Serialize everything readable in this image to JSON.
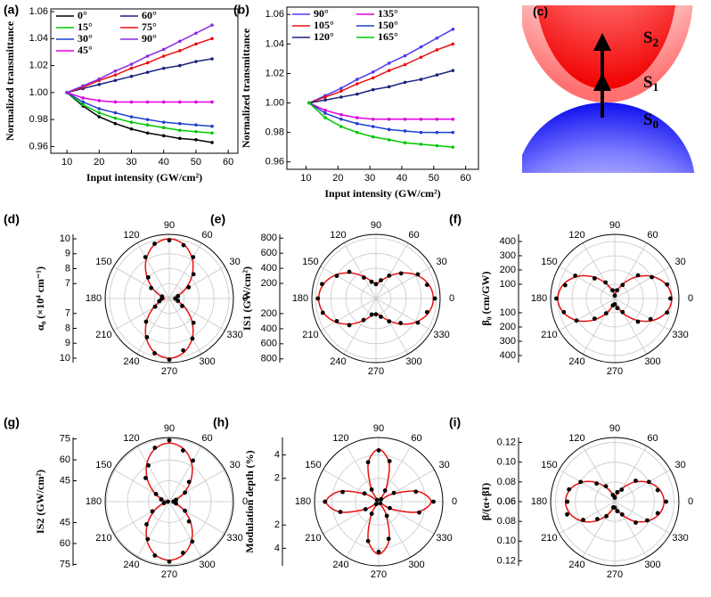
{
  "chart_data": [
    {
      "type": "line",
      "panel": "(a)",
      "xlabel": "Input intensity (GW/cm²)",
      "ylabel": "Normalized transmittance",
      "x": [
        10,
        15,
        20,
        25,
        30,
        35,
        40,
        45,
        50,
        55
      ],
      "xlim": [
        5,
        63
      ],
      "xticks": [
        10,
        20,
        30,
        40,
        50,
        60
      ],
      "ylim": [
        0.955,
        1.062
      ],
      "yticks": [
        0.96,
        0.98,
        {
          "value": 1,
          "label": "1.00"
        },
        1.02,
        1.04,
        1.06
      ],
      "series": [
        {
          "name": "0°",
          "color": "#000000",
          "values": [
            1.0,
            0.99,
            0.982,
            0.977,
            0.973,
            0.97,
            0.968,
            0.966,
            0.965,
            0.963
          ]
        },
        {
          "name": "15°",
          "color": "#00c800",
          "values": [
            1.0,
            0.991,
            0.985,
            0.981,
            0.978,
            0.976,
            0.974,
            0.972,
            0.971,
            0.97
          ]
        },
        {
          "name": "30°",
          "color": "#1f3fd0",
          "values": [
            1.0,
            0.993,
            0.988,
            0.985,
            0.982,
            0.98,
            0.978,
            0.977,
            0.976,
            0.975
          ]
        },
        {
          "name": "45°",
          "color": "#e000e0",
          "values": [
            1.0,
            0.996,
            0.994,
            0.993,
            0.993,
            0.993,
            0.993,
            0.993,
            0.993,
            0.993
          ]
        },
        {
          "name": "60°",
          "color": "#1a237e",
          "values": [
            1.0,
            1.003,
            1.006,
            1.009,
            1.012,
            1.015,
            1.018,
            1.02,
            1.023,
            1.025
          ]
        },
        {
          "name": "75°",
          "color": "#e81010",
          "values": [
            1.0,
            1.004,
            1.009,
            1.013,
            1.018,
            1.022,
            1.027,
            1.031,
            1.036,
            1.04
          ]
        },
        {
          "name": "90°",
          "color": "#8a2be2",
          "values": [
            1.0,
            1.005,
            1.01,
            1.016,
            1.021,
            1.027,
            1.032,
            1.038,
            1.044,
            1.05
          ]
        }
      ]
    },
    {
      "type": "line",
      "panel": "(b)",
      "xlabel": "Input intensity (GW/cm²)",
      "ylabel": "Normalized transmittance",
      "x": [
        11,
        16,
        21,
        26,
        31,
        36,
        41,
        46,
        51,
        56
      ],
      "xlim": [
        4,
        64
      ],
      "xticks": [
        10,
        20,
        30,
        40,
        50,
        60
      ],
      "ylim": [
        0.955,
        1.065
      ],
      "yticks": [
        0.96,
        0.98,
        {
          "value": 1,
          "label": "1.00"
        },
        1.02,
        1.04,
        1.06
      ],
      "series": [
        {
          "name": "90°",
          "color": "#4b3bf0",
          "values": [
            1.0,
            1.005,
            1.01,
            1.016,
            1.021,
            1.027,
            1.032,
            1.038,
            1.044,
            1.05
          ]
        },
        {
          "name": "105°",
          "color": "#e81010",
          "values": [
            1.0,
            1.004,
            1.008,
            1.013,
            1.017,
            1.022,
            1.026,
            1.031,
            1.036,
            1.04
          ]
        },
        {
          "name": "120°",
          "color": "#1a237e",
          "values": [
            1.0,
            1.002,
            1.004,
            1.006,
            1.009,
            1.011,
            1.014,
            1.016,
            1.019,
            1.022
          ]
        },
        {
          "name": "135°",
          "color": "#e000e0",
          "values": [
            1.0,
            0.995,
            0.992,
            0.99,
            0.989,
            0.989,
            0.989,
            0.989,
            0.989,
            0.989
          ]
        },
        {
          "name": "150°",
          "color": "#1f3fd0",
          "values": [
            1.0,
            0.993,
            0.989,
            0.986,
            0.984,
            0.982,
            0.981,
            0.98,
            0.98,
            0.98
          ]
        },
        {
          "name": "165°",
          "color": "#00c800",
          "values": [
            1.0,
            0.99,
            0.984,
            0.98,
            0.977,
            0.975,
            0.973,
            0.972,
            0.971,
            0.97
          ]
        }
      ]
    },
    {
      "type": "polar",
      "panel": "(d)",
      "ylabel": "α₀ (×10⁴ cm⁻¹)",
      "rlim": [
        6,
        10.3
      ],
      "rticks": [
        7,
        8,
        9,
        10
      ],
      "thetaticks": [
        0,
        30,
        60,
        90,
        120,
        150,
        180,
        210,
        240,
        270,
        300,
        330
      ],
      "theta": [
        0,
        15,
        30,
        45,
        60,
        75,
        90,
        105,
        120,
        135,
        150,
        165,
        180,
        195,
        210,
        225,
        240,
        255,
        270,
        285,
        300,
        315,
        330,
        345
      ],
      "values": [
        6.4,
        6.6,
        7.5,
        8.3,
        9.2,
        9.7,
        9.9,
        9.8,
        9.2,
        8.0,
        7.4,
        6.5,
        6.5,
        6.7,
        7.1,
        8.2,
        9.0,
        9.8,
        10.1,
        9.6,
        9.1,
        8.3,
        7.0,
        6.6
      ],
      "fit": [
        6.3,
        6.55,
        7.23,
        8.15,
        9.08,
        9.75,
        10.0,
        9.75,
        9.08,
        8.15,
        7.23,
        6.55,
        6.3,
        6.55,
        7.23,
        8.15,
        9.08,
        9.75,
        10.0,
        9.75,
        9.08,
        8.15,
        7.23,
        6.55
      ],
      "color": "#e81010",
      "point_color": "#000000"
    },
    {
      "type": "polar",
      "panel": "(e)",
      "ylabel": "IS1 (GW/cm²)",
      "rlim": [
        0,
        850
      ],
      "rticks": [
        200,
        400,
        600,
        800
      ],
      "thetaticks": [
        0,
        30,
        60,
        90,
        120,
        150,
        180,
        210,
        240,
        270,
        300,
        330
      ],
      "theta": [
        0,
        15,
        30,
        45,
        60,
        75,
        90,
        105,
        120,
        135,
        150,
        165,
        180,
        195,
        210,
        225,
        240,
        255,
        270,
        285,
        300,
        315,
        330,
        345
      ],
      "values": [
        780,
        700,
        640,
        470,
        350,
        250,
        190,
        230,
        320,
        500,
        600,
        740,
        770,
        730,
        600,
        500,
        330,
        220,
        210,
        250,
        350,
        460,
        640,
        700
      ],
      "fit": [
        760,
        722,
        620,
        480,
        340,
        238,
        200,
        238,
        340,
        480,
        620,
        722,
        760,
        722,
        620,
        480,
        340,
        238,
        200,
        238,
        340,
        480,
        620,
        722
      ],
      "color": "#e81010",
      "point_color": "#000000"
    },
    {
      "type": "polar",
      "panel": "(f)",
      "ylabel": "β₀ (cm/GW)",
      "rlim": [
        0,
        450
      ],
      "rticks": [
        100,
        200,
        300,
        400
      ],
      "thetaticks": [
        0,
        30,
        60,
        90,
        120,
        150,
        180,
        210,
        240,
        270,
        300,
        330
      ],
      "theta": [
        0,
        15,
        30,
        45,
        60,
        75,
        90,
        105,
        120,
        135,
        150,
        165,
        180,
        195,
        210,
        225,
        240,
        255,
        270,
        285,
        300,
        315,
        330,
        345
      ],
      "values": [
        390,
        380,
        300,
        230,
        110,
        60,
        20,
        60,
        130,
        200,
        320,
        360,
        410,
        370,
        310,
        200,
        120,
        50,
        40,
        70,
        110,
        230,
        290,
        380
      ],
      "fit": [
        400,
        375,
        308,
        215,
        123,
        55,
        30,
        55,
        123,
        215,
        308,
        375,
        400,
        375,
        308,
        215,
        123,
        55,
        30,
        55,
        123,
        215,
        308,
        375
      ],
      "color": "#e81010",
      "point_color": "#000000"
    },
    {
      "type": "polar",
      "panel": "(g)",
      "ylabel": "IS2 (GW/cm²)",
      "rlim": [
        30,
        76
      ],
      "rticks": [
        45,
        60,
        75
      ],
      "thetaticks": [
        0,
        30,
        60,
        90,
        120,
        150,
        180,
        210,
        240,
        270,
        300,
        330
      ],
      "theta": [
        0,
        15,
        30,
        45,
        60,
        75,
        90,
        105,
        120,
        135,
        150,
        165,
        180,
        195,
        210,
        225,
        240,
        255,
        270,
        285,
        300,
        315,
        330,
        345
      ],
      "values": [
        33,
        35,
        43,
        50,
        64,
        68,
        74,
        70,
        60,
        54,
        41,
        36,
        31,
        34,
        44,
        53,
        61,
        70,
        73,
        68,
        63,
        50,
        43,
        35
      ],
      "fit": [
        32,
        34.7,
        42,
        52,
        62,
        69.3,
        72,
        69.3,
        62,
        52,
        42,
        34.7,
        32,
        34.7,
        42,
        52,
        62,
        69.3,
        72,
        69.3,
        62,
        52,
        42,
        34.7
      ],
      "color": "#e81010",
      "point_color": "#000000"
    },
    {
      "type": "polar",
      "panel": "(h)",
      "ylabel": "Modulation depth (%)",
      "rlim": [
        0,
        5.5
      ],
      "rticks": [
        2,
        4
      ],
      "thetaticks": [
        0,
        30,
        60,
        90,
        120,
        150,
        180,
        210,
        240,
        270,
        300,
        330
      ],
      "theta": [
        0,
        15,
        30,
        45,
        60,
        75,
        90,
        105,
        120,
        135,
        150,
        165,
        180,
        195,
        210,
        225,
        240,
        255,
        270,
        285,
        300,
        315,
        330,
        345
      ],
      "values": [
        4.7,
        3.3,
        1.5,
        0.3,
        1.1,
        3.6,
        4.4,
        3.5,
        1.2,
        0.2,
        1.4,
        3.2,
        4.6,
        3.4,
        1.3,
        0.3,
        1.2,
        3.5,
        4.3,
        3.3,
        1.4,
        0.2,
        1.1,
        3.6
      ],
      "fit": [
        4.5,
        3.43,
        1.28,
        0.2,
        1.28,
        3.43,
        4.5,
        3.43,
        1.28,
        0.2,
        1.28,
        3.43,
        4.5,
        3.43,
        1.28,
        0.2,
        1.28,
        3.43,
        4.5,
        3.43,
        1.28,
        0.2,
        1.28,
        3.43
      ],
      "color": "#e81010",
      "point_color": "#000000"
    },
    {
      "type": "polar",
      "panel": "(i)",
      "ylabel": "β/(α+βI)",
      "rlim": [
        0.06,
        0.125
      ],
      "rticks": [
        0.06,
        0.08,
        {
          "value": 0.1,
          "label": "0.10"
        },
        0.12
      ],
      "thetaticks": [
        0,
        30,
        60,
        90,
        120,
        150,
        180,
        210,
        240,
        270,
        300,
        330
      ],
      "theta": [
        0,
        15,
        30,
        45,
        60,
        75,
        90,
        105,
        120,
        135,
        150,
        165,
        180,
        195,
        210,
        225,
        240,
        255,
        270,
        285,
        300,
        315,
        330,
        345
      ],
      "values": [
        0.112,
        0.105,
        0.1,
        0.09,
        0.074,
        0.07,
        0.064,
        0.067,
        0.078,
        0.086,
        0.1,
        0.108,
        0.108,
        0.11,
        0.097,
        0.085,
        0.077,
        0.066,
        0.066,
        0.07,
        0.075,
        0.09,
        0.098,
        0.105
      ],
      "fit": [
        0.11,
        0.107,
        0.099,
        0.088,
        0.076,
        0.068,
        0.065,
        0.068,
        0.076,
        0.088,
        0.099,
        0.107,
        0.11,
        0.107,
        0.099,
        0.088,
        0.076,
        0.068,
        0.065,
        0.068,
        0.076,
        0.088,
        0.099,
        0.107
      ],
      "color": "#e81010",
      "point_color": "#000000"
    }
  ],
  "diagram": {
    "panel": "(c)",
    "states": [
      {
        "symbol": "S",
        "index": "2"
      },
      {
        "symbol": "S",
        "index": "1"
      },
      {
        "symbol": "S",
        "index": "0"
      }
    ]
  }
}
